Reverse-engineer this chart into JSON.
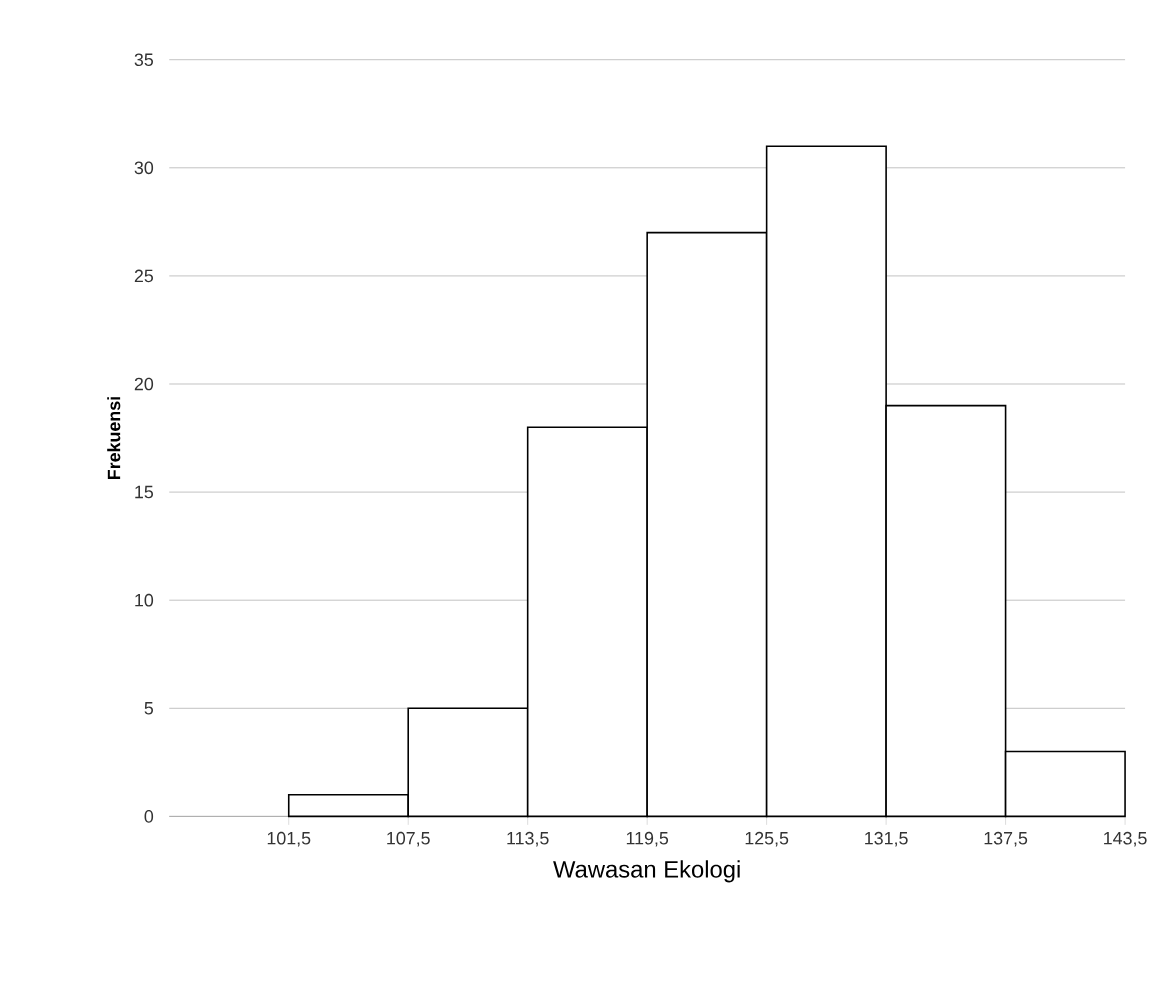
{
  "chart_data": {
    "type": "histogram",
    "xlabel": "Wawasan Ekologi",
    "ylabel": "Frekuensi",
    "bins": [
      101.5,
      107.5,
      113.5,
      119.5,
      125.5,
      131.5,
      137.5,
      143.5
    ],
    "values": [
      1,
      5,
      18,
      27,
      31,
      19,
      3
    ],
    "color": "#ffffff",
    "xlim": [
      95.5,
      143.5
    ],
    "xticks": [
      {
        "value": 101.5,
        "label": "101,5"
      },
      {
        "value": 107.5,
        "label": "107,5"
      },
      {
        "value": 113.5,
        "label": "113,5"
      },
      {
        "value": 119.5,
        "label": "119,5"
      },
      {
        "value": 125.5,
        "label": "125,5"
      },
      {
        "value": 131.5,
        "label": "131,5"
      },
      {
        "value": 137.5,
        "label": "137,5"
      },
      {
        "value": 143.5,
        "label": "143,5"
      }
    ],
    "ylim": [
      0,
      35
    ],
    "yticks": [
      0,
      5,
      10,
      15,
      20,
      25,
      30,
      35
    ],
    "grid": "y"
  }
}
